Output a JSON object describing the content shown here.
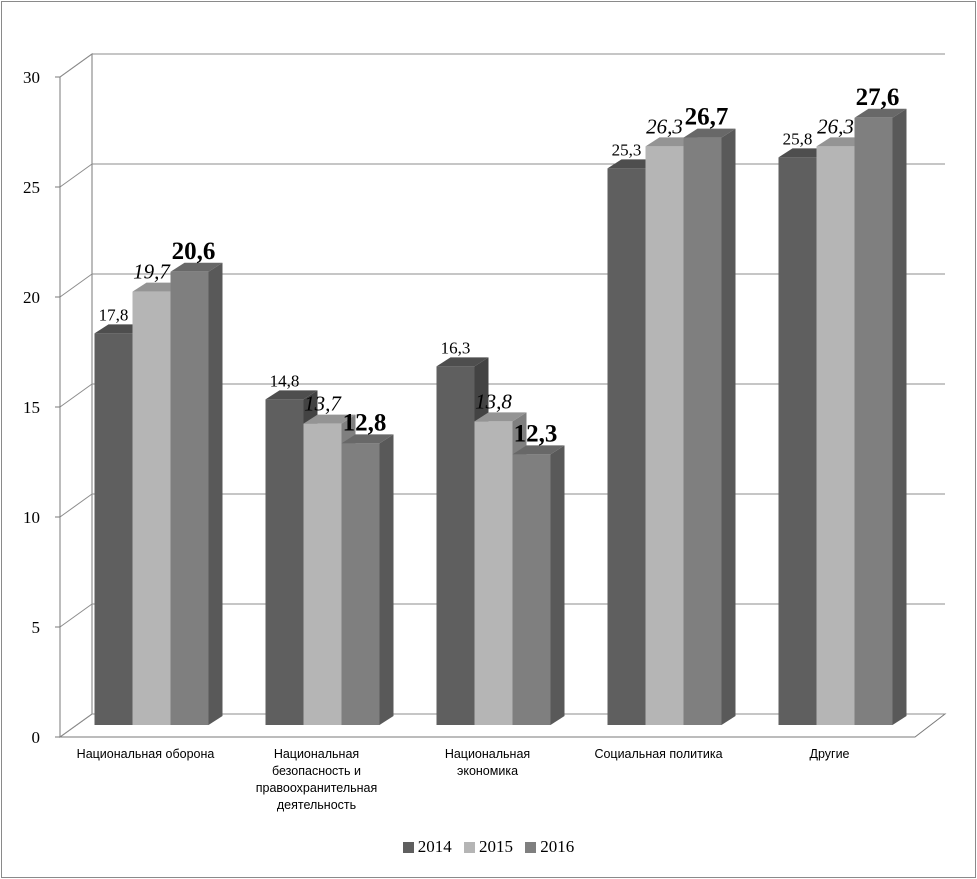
{
  "chart_data": {
    "type": "bar",
    "categories": [
      [
        "Национальная оборона"
      ],
      [
        "Национальная",
        "безопасность и",
        "правоохранительная",
        "деятельность"
      ],
      [
        "Национальная",
        "экономика"
      ],
      [
        "Социальная политика"
      ],
      [
        "Другие"
      ]
    ],
    "series": [
      {
        "name": "2014",
        "values": [
          17.8,
          14.8,
          16.3,
          25.3,
          25.8
        ],
        "labels": [
          "17,8",
          "14,8",
          "16,3",
          "25,3",
          "25,8"
        ],
        "color": "#5f5f5f",
        "label_style": "normal"
      },
      {
        "name": "2015",
        "values": [
          19.7,
          13.7,
          13.8,
          26.3,
          26.3
        ],
        "labels": [
          "19,7",
          "13,7",
          "13,8",
          "26,3",
          "26,3"
        ],
        "color": "#b5b5b5",
        "label_style": "italic"
      },
      {
        "name": "2016",
        "values": [
          20.6,
          12.8,
          12.3,
          26.7,
          27.6
        ],
        "labels": [
          "20,6",
          "12,8",
          "12,3",
          "26,7",
          "27,6"
        ],
        "color": "#7f7f7f",
        "label_style": "bold"
      }
    ],
    "y_ticks": [
      "0",
      "5",
      "10",
      "15",
      "20",
      "25",
      "30"
    ],
    "ylim": [
      0,
      30
    ],
    "grid": true,
    "style": "3d-column",
    "legend_position": "bottom"
  }
}
